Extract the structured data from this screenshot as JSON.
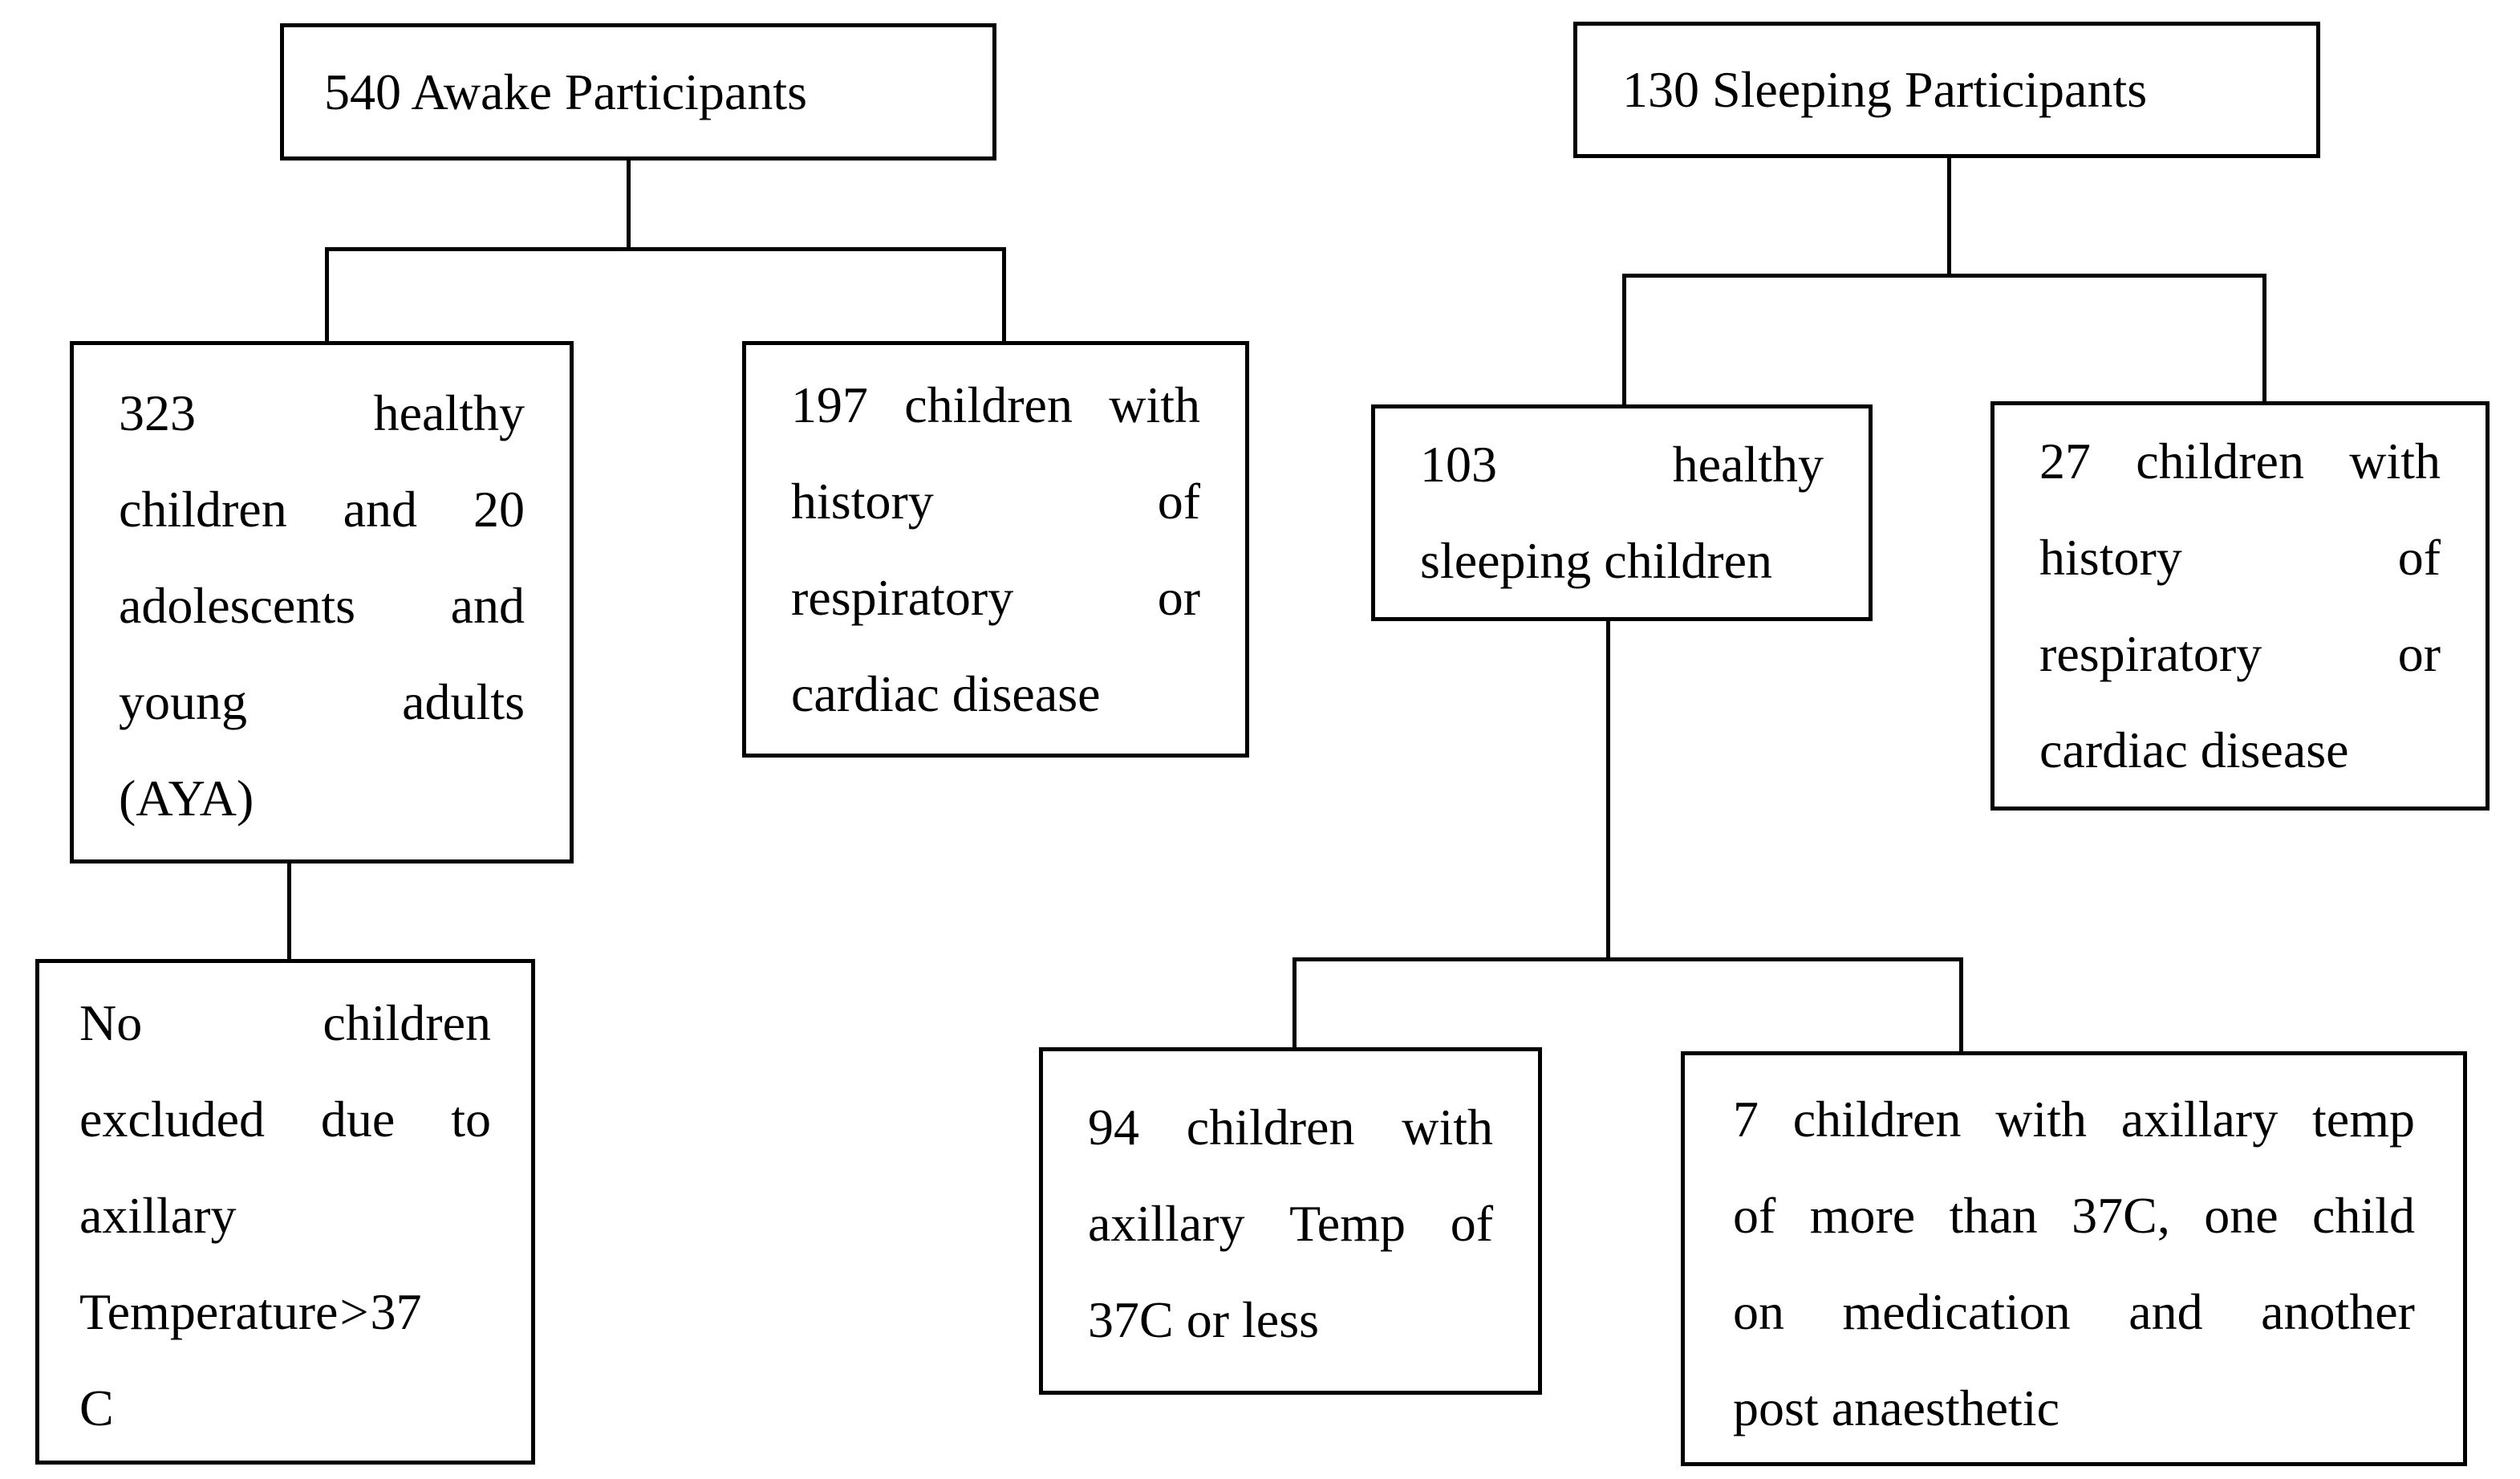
{
  "colors": {
    "background": "#ffffff",
    "line": "#000000",
    "text": "#000000",
    "box_fill": "#ffffff"
  },
  "diagram": {
    "type": "flowchart",
    "boxes": [
      {
        "id": "awake-root",
        "text": "540 Awake Participants",
        "lines": [
          {
            "text": "540 Awake Participants",
            "justify": false
          }
        ]
      },
      {
        "id": "awake-healthy",
        "text": "323 healthy children and 20 adolescents and young adults (AYA)",
        "lines": [
          {
            "words": [
              "323",
              "healthy"
            ],
            "justify": true
          },
          {
            "words": [
              "children",
              "and",
              "20"
            ],
            "justify": true
          },
          {
            "words": [
              "adolescents",
              "and"
            ],
            "justify": true
          },
          {
            "words": [
              "young",
              "adults"
            ],
            "justify": true
          },
          {
            "text": "(AYA)",
            "justify": false
          }
        ]
      },
      {
        "id": "awake-cardiac",
        "text": "197 children with history of respiratory or cardiac disease",
        "lines": [
          {
            "words": [
              "197",
              "children",
              "with"
            ],
            "justify": true
          },
          {
            "words": [
              "history",
              "of"
            ],
            "justify": true
          },
          {
            "words": [
              "respiratory",
              "or"
            ],
            "justify": true
          },
          {
            "text": "cardiac disease",
            "justify": false
          }
        ]
      },
      {
        "id": "awake-excluded",
        "text": "No children excluded due to axillary Temperature > 37 C",
        "lines": [
          {
            "words": [
              "No",
              "children"
            ],
            "justify": true
          },
          {
            "words": [
              "excluded",
              "due",
              "to"
            ],
            "justify": true
          },
          {
            "text": "axillary",
            "justify": false
          },
          {
            "text": "Temperature > 37",
            "justify": false,
            "tight": true
          },
          {
            "text": "C",
            "justify": false
          }
        ]
      },
      {
        "id": "sleep-root",
        "text": "130 Sleeping Participants",
        "lines": [
          {
            "text": "130 Sleeping Participants",
            "justify": false
          }
        ]
      },
      {
        "id": "sleep-healthy",
        "text": "103 healthy sleeping children",
        "lines": [
          {
            "words": [
              "103",
              "healthy"
            ],
            "justify": true
          },
          {
            "text": "sleeping children",
            "justify": false
          }
        ]
      },
      {
        "id": "sleep-cardiac",
        "text": "27 children with history of respiratory or cardiac disease",
        "lines": [
          {
            "words": [
              "27",
              "children",
              "with"
            ],
            "justify": true
          },
          {
            "words": [
              "history",
              "of"
            ],
            "justify": true
          },
          {
            "words": [
              "respiratory",
              "or"
            ],
            "justify": true
          },
          {
            "text": "cardiac disease",
            "justify": false
          }
        ]
      },
      {
        "id": "temp-low",
        "text": "94 children with axillary Temp of 37C or less",
        "lines": [
          {
            "words": [
              "94",
              "children",
              "with"
            ],
            "justify": true
          },
          {
            "words": [
              "axillary",
              "Temp",
              "of"
            ],
            "justify": true
          },
          {
            "text": "37C or less",
            "justify": false
          }
        ]
      },
      {
        "id": "temp-high",
        "text": "7 children with axillary temp of more than 37C, one child on medication and another post anaesthetic",
        "lines": [
          {
            "words": [
              "7",
              "children",
              "with",
              "axillary",
              "temp"
            ],
            "justify": true
          },
          {
            "words": [
              "of",
              "more",
              "than",
              "37C,",
              "one",
              "child"
            ],
            "justify": true
          },
          {
            "words": [
              "on",
              "medication",
              "and",
              "another"
            ],
            "justify": true
          },
          {
            "text": "post anaesthetic",
            "justify": false
          }
        ]
      }
    ],
    "edges": [
      {
        "from": "awake-root",
        "to": "awake-healthy"
      },
      {
        "from": "awake-root",
        "to": "awake-cardiac"
      },
      {
        "from": "awake-healthy",
        "to": "awake-excluded"
      },
      {
        "from": "sleep-root",
        "to": "sleep-healthy"
      },
      {
        "from": "sleep-root",
        "to": "sleep-cardiac"
      },
      {
        "from": "sleep-healthy",
        "to": "temp-low"
      },
      {
        "from": "sleep-healthy",
        "to": "temp-high"
      }
    ]
  }
}
